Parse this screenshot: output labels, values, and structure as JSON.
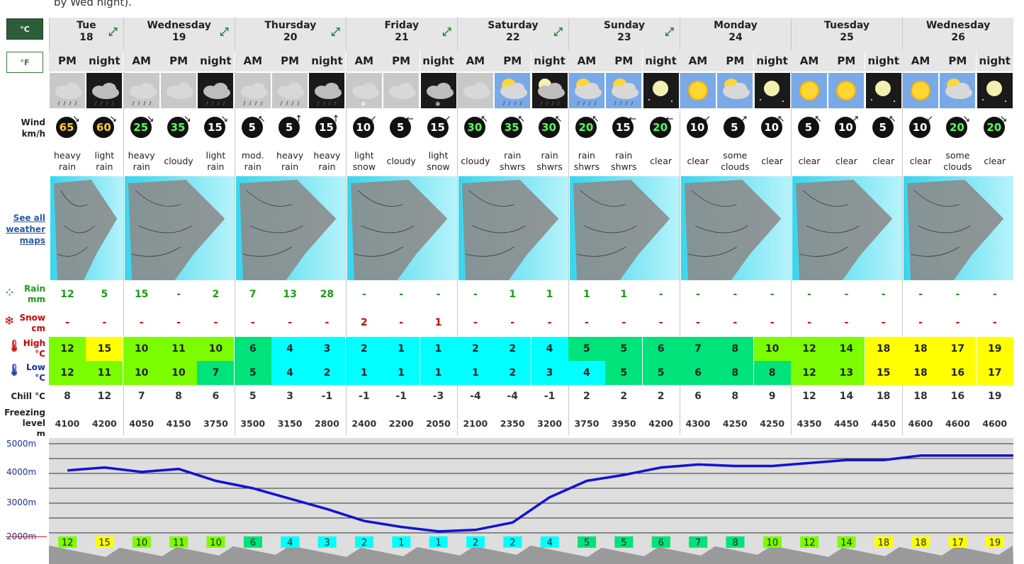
{
  "top_note": "by Wed night).",
  "units": {
    "celsius": "°C",
    "fahrenheit": "°F"
  },
  "labels": {
    "wind": "Wind",
    "wind_unit": "km/h",
    "see_maps_1": "See all",
    "see_maps_2": "weather",
    "see_maps_3": "maps",
    "rain": "Rain",
    "rain_unit": "mm",
    "snow": "Snow",
    "snow_unit": "cm",
    "high": "High",
    "high_unit": "°C",
    "low": "Low",
    "low_unit": "°C",
    "chill": "Chill °C",
    "freezing_1": "Freezing",
    "freezing_2": "level",
    "freezing_3": "m"
  },
  "days": [
    {
      "name": "Tue",
      "num": "18",
      "span": 2
    },
    {
      "name": "Wednesday",
      "num": "19",
      "span": 3
    },
    {
      "name": "Thursday",
      "num": "20",
      "span": 3
    },
    {
      "name": "Friday",
      "num": "21",
      "span": 3
    },
    {
      "name": "Saturday",
      "num": "22",
      "span": 3
    },
    {
      "name": "Sunday",
      "num": "23",
      "span": 3
    },
    {
      "name": "Monday",
      "num": "24",
      "span": 3
    },
    {
      "name": "Tuesday",
      "num": "25",
      "span": 3
    },
    {
      "name": "Wednesday",
      "num": "26",
      "span": 3
    }
  ],
  "periods": [
    {
      "p": "PM",
      "sky": "rain",
      "wind": "65",
      "wclass": "cold",
      "dir": "↘",
      "sum1": "heavy",
      "sum2": "rain",
      "rain": "12",
      "snow": "-",
      "high": "12",
      "high_color": "#7cfc00",
      "low": "12",
      "low_color": "#7cfc00",
      "chill": "8",
      "frz": "4100"
    },
    {
      "p": "night",
      "sky": "rain-night",
      "wind": "60",
      "wclass": "cold",
      "dir": "↘",
      "sum1": "light",
      "sum2": "rain",
      "rain": "5",
      "snow": "-",
      "high": "15",
      "high_color": "#ffff00",
      "low": "11",
      "low_color": "#7cfc00",
      "chill": "12",
      "frz": "4200"
    },
    {
      "p": "AM",
      "sky": "rain",
      "wind": "25",
      "wclass": "green",
      "dir": "↘",
      "sum1": "heavy",
      "sum2": "rain",
      "rain": "15",
      "snow": "-",
      "high": "10",
      "high_color": "#7cfc00",
      "low": "10",
      "low_color": "#7cfc00",
      "chill": "7",
      "frz": "4050"
    },
    {
      "p": "PM",
      "sky": "cloud",
      "wind": "35",
      "wclass": "green",
      "dir": "↘",
      "sum1": "cloudy",
      "sum2": "",
      "rain": "-",
      "snow": "-",
      "high": "11",
      "high_color": "#7cfc00",
      "low": "10",
      "low_color": "#7cfc00",
      "chill": "8",
      "frz": "4150"
    },
    {
      "p": "night",
      "sky": "rain-night",
      "wind": "15",
      "wclass": "",
      "dir": "↘",
      "sum1": "light",
      "sum2": "rain",
      "rain": "2",
      "snow": "-",
      "high": "10",
      "high_color": "#7cfc00",
      "low": "7",
      "low_color": "#00e27a",
      "chill": "6",
      "frz": "3750"
    },
    {
      "p": "AM",
      "sky": "rain",
      "wind": "5",
      "wclass": "",
      "dir": "↖",
      "sum1": "mod.",
      "sum2": "rain",
      "rain": "7",
      "snow": "-",
      "high": "6",
      "high_color": "#00e27a",
      "low": "5",
      "low_color": "#00e27a",
      "chill": "5",
      "frz": "3500"
    },
    {
      "p": "PM",
      "sky": "rain",
      "wind": "5",
      "wclass": "",
      "dir": "↑",
      "sum1": "heavy",
      "sum2": "rain",
      "rain": "13",
      "snow": "-",
      "high": "4",
      "high_color": "#00ffff",
      "low": "4",
      "low_color": "#00ffff",
      "chill": "3",
      "frz": "3150"
    },
    {
      "p": "night",
      "sky": "rain-night",
      "wind": "15",
      "wclass": "",
      "dir": "↑",
      "sum1": "heavy",
      "sum2": "rain",
      "rain": "28",
      "snow": "-",
      "high": "3",
      "high_color": "#00ffff",
      "low": "2",
      "low_color": "#00ffff",
      "chill": "-1",
      "frz": "2800"
    },
    {
      "p": "AM",
      "sky": "snow",
      "wind": "10",
      "wclass": "",
      "dir": "↙",
      "sum1": "light",
      "sum2": "snow",
      "rain": "-",
      "snow": "2",
      "high": "2",
      "high_color": "#00ffff",
      "low": "1",
      "low_color": "#00ffff",
      "chill": "-1",
      "frz": "2400"
    },
    {
      "p": "PM",
      "sky": "cloud",
      "wind": "5",
      "wclass": "",
      "dir": "←",
      "sum1": "cloudy",
      "sum2": "",
      "rain": "-",
      "snow": "-",
      "high": "1",
      "high_color": "#00ffff",
      "low": "1",
      "low_color": "#00ffff",
      "chill": "-1",
      "frz": "2200"
    },
    {
      "p": "night",
      "sky": "snow-night",
      "wind": "15",
      "wclass": "",
      "dir": "↙",
      "sum1": "light",
      "sum2": "snow",
      "rain": "-",
      "snow": "1",
      "high": "1",
      "high_color": "#00ffff",
      "low": "1",
      "low_color": "#00ffff",
      "chill": "-3",
      "frz": "2050"
    },
    {
      "p": "AM",
      "sky": "cloud",
      "wind": "30",
      "wclass": "green",
      "dir": "↖",
      "sum1": "cloudy",
      "sum2": "",
      "rain": "-",
      "snow": "-",
      "high": "2",
      "high_color": "#00ffff",
      "low": "1",
      "low_color": "#00ffff",
      "chill": "-4",
      "frz": "2100"
    },
    {
      "p": "PM",
      "sky": "sun-shower",
      "wind": "35",
      "wclass": "green",
      "dir": "↖",
      "sum1": "rain",
      "sum2": "shwrs",
      "rain": "1",
      "snow": "-",
      "high": "2",
      "high_color": "#00ffff",
      "low": "2",
      "low_color": "#00ffff",
      "chill": "-4",
      "frz": "2350"
    },
    {
      "p": "night",
      "sky": "moon-shower",
      "wind": "30",
      "wclass": "green",
      "dir": "↖",
      "sum1": "rain",
      "sum2": "shwrs",
      "rain": "1",
      "snow": "-",
      "high": "4",
      "high_color": "#00ffff",
      "low": "3",
      "low_color": "#00ffff",
      "chill": "-1",
      "frz": "3200"
    },
    {
      "p": "AM",
      "sky": "sun-shower",
      "wind": "20",
      "wclass": "green",
      "dir": "↖",
      "sum1": "rain",
      "sum2": "shwrs",
      "rain": "1",
      "snow": "-",
      "high": "5",
      "high_color": "#00e27a",
      "low": "4",
      "low_color": "#00ffff",
      "chill": "2",
      "frz": "3750"
    },
    {
      "p": "PM",
      "sky": "sun-shower",
      "wind": "15",
      "wclass": "",
      "dir": "←",
      "sum1": "rain",
      "sum2": "shwrs",
      "rain": "1",
      "snow": "-",
      "high": "5",
      "high_color": "#00e27a",
      "low": "5",
      "low_color": "#00e27a",
      "chill": "2",
      "frz": "3950"
    },
    {
      "p": "night",
      "sky": "moon",
      "wind": "20",
      "wclass": "green",
      "dir": "←",
      "sum1": "clear",
      "sum2": "",
      "rain": "-",
      "snow": "-",
      "high": "6",
      "high_color": "#00e27a",
      "low": "5",
      "low_color": "#00e27a",
      "chill": "2",
      "frz": "4200"
    },
    {
      "p": "AM",
      "sky": "sun",
      "wind": "10",
      "wclass": "",
      "dir": "↙",
      "sum1": "clear",
      "sum2": "",
      "rain": "-",
      "snow": "-",
      "high": "7",
      "high_color": "#00e27a",
      "low": "6",
      "low_color": "#00e27a",
      "chill": "6",
      "frz": "4300"
    },
    {
      "p": "PM",
      "sky": "sun-cloud",
      "wind": "5",
      "wclass": "",
      "dir": "↗",
      "sum1": "some",
      "sum2": "clouds",
      "rain": "-",
      "snow": "-",
      "high": "8",
      "high_color": "#00e27a",
      "low": "8",
      "low_color": "#00e27a",
      "chill": "8",
      "frz": "4250"
    },
    {
      "p": "night",
      "sky": "moon",
      "wind": "10",
      "wclass": "",
      "dir": "↖",
      "sum1": "clear",
      "sum2": "",
      "rain": "-",
      "snow": "-",
      "high": "10",
      "high_color": "#7cfc00",
      "low": "8",
      "low_color": "#00e27a",
      "chill": "9",
      "frz": "4250"
    },
    {
      "p": "AM",
      "sky": "sun",
      "wind": "5",
      "wclass": "",
      "dir": "↖",
      "sum1": "clear",
      "sum2": "",
      "rain": "-",
      "snow": "-",
      "high": "12",
      "high_color": "#7cfc00",
      "low": "12",
      "low_color": "#7cfc00",
      "chill": "12",
      "frz": "4350"
    },
    {
      "p": "PM",
      "sky": "sun",
      "wind": "10",
      "wclass": "",
      "dir": "↗",
      "sum1": "clear",
      "sum2": "",
      "rain": "-",
      "snow": "-",
      "high": "14",
      "high_color": "#7cfc00",
      "low": "13",
      "low_color": "#7cfc00",
      "chill": "14",
      "frz": "4450"
    },
    {
      "p": "night",
      "sky": "moon",
      "wind": "5",
      "wclass": "",
      "dir": "↖",
      "sum1": "clear",
      "sum2": "",
      "rain": "-",
      "snow": "-",
      "high": "18",
      "high_color": "#ffff00",
      "low": "15",
      "low_color": "#ffff00",
      "chill": "18",
      "frz": "4450"
    },
    {
      "p": "AM",
      "sky": "sun",
      "wind": "10",
      "wclass": "",
      "dir": "↙",
      "sum1": "clear",
      "sum2": "",
      "rain": "-",
      "snow": "-",
      "high": "18",
      "high_color": "#ffff00",
      "low": "18",
      "low_color": "#ffff00",
      "chill": "18",
      "frz": "4600"
    },
    {
      "p": "PM",
      "sky": "sun-cloud",
      "wind": "20",
      "wclass": "green",
      "dir": "↘",
      "sum1": "some",
      "sum2": "clouds",
      "rain": "-",
      "snow": "-",
      "high": "17",
      "high_color": "#ffff00",
      "low": "16",
      "low_color": "#ffff00",
      "chill": "16",
      "frz": "4600"
    },
    {
      "p": "night",
      "sky": "moon",
      "wind": "20",
      "wclass": "green",
      "dir": "↘",
      "sum1": "clear",
      "sum2": "",
      "rain": "-",
      "snow": "-",
      "high": "19",
      "high_color": "#ffff00",
      "low": "17",
      "low_color": "#ffff00",
      "chill": "19",
      "frz": "4600"
    }
  ],
  "graph": {
    "axis_labels": [
      "5000m",
      "4000m",
      "3000m",
      "2000m"
    ],
    "line_color": "#1212d6"
  }
}
